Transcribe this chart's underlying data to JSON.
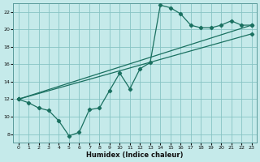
{
  "xlabel": "Humidex (Indice chaleur)",
  "bg_color": "#c5eaea",
  "line_color": "#1a7060",
  "grid_color": "#88c4c4",
  "xlim": [
    -0.5,
    23.5
  ],
  "ylim": [
    7.0,
    23.0
  ],
  "xticks": [
    0,
    1,
    2,
    3,
    4,
    5,
    6,
    7,
    8,
    9,
    10,
    11,
    12,
    13,
    14,
    15,
    16,
    17,
    18,
    19,
    20,
    21,
    22,
    23
  ],
  "yticks": [
    8,
    10,
    12,
    14,
    16,
    18,
    20,
    22
  ],
  "curve1_x": [
    0,
    1,
    2,
    3,
    4,
    5,
    6,
    7,
    8,
    9,
    10,
    11,
    12,
    13,
    14,
    15,
    16,
    17,
    18,
    19,
    20,
    21,
    22,
    23
  ],
  "curve1_y": [
    12.0,
    11.6,
    11.0,
    10.7,
    9.5,
    7.8,
    8.2,
    10.8,
    11.0,
    13.0,
    15.0,
    13.2,
    15.5,
    16.2,
    22.8,
    22.5,
    21.8,
    20.5,
    20.2,
    20.2,
    20.5,
    21.0,
    20.5,
    20.5
  ],
  "curve2_x": [
    0,
    23
  ],
  "curve2_y": [
    12.0,
    20.5
  ],
  "curve3_x": [
    0,
    23
  ],
  "curve3_y": [
    12.0,
    19.5
  ],
  "marker": "D",
  "markersize": 2.2,
  "linewidth": 0.9,
  "xlabel_fontsize": 6.0,
  "tick_fontsize": 4.5
}
